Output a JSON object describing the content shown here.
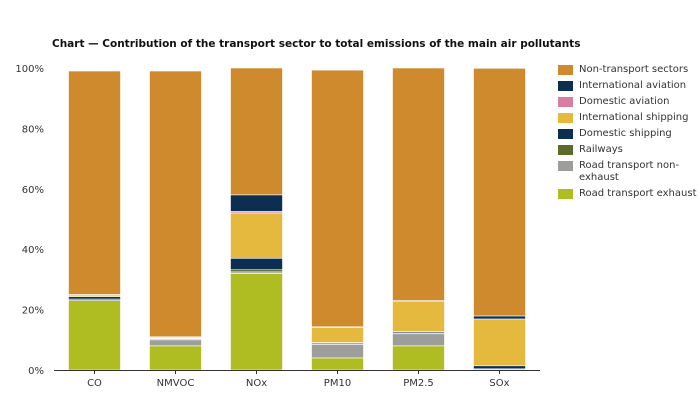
{
  "chart_data": {
    "type": "bar",
    "stacked": true,
    "title": "Chart — Contribution of the transport sector to total emissions of the main air pollutants",
    "xlabel": "",
    "ylabel": "",
    "ylim": [
      0,
      100
    ],
    "ytick_values": [
      0,
      20,
      40,
      60,
      80,
      100
    ],
    "ytick_labels": [
      "0%",
      "20%",
      "40%",
      "60%",
      "80%",
      "100%"
    ],
    "grid": false,
    "legend_position": "right",
    "categories": [
      "CO",
      "NMVOC",
      "NOx",
      "PM10",
      "PM2.5",
      "SOx"
    ],
    "series": [
      {
        "name": "Road transport exhaust",
        "color": "#afbc22",
        "values": [
          23,
          8,
          32,
          4,
          8,
          0.3
        ]
      },
      {
        "name": "Road transport non-exhaust",
        "color": "#9d9d9c",
        "values": [
          0,
          2,
          0.5,
          4.5,
          4,
          0
        ]
      },
      {
        "name": "Railways",
        "color": "#5b6b2a",
        "values": [
          0.5,
          0.3,
          0.7,
          0.4,
          0.3,
          0.1
        ]
      },
      {
        "name": "Domestic shipping",
        "color": "#0b2e51",
        "values": [
          0.8,
          0.2,
          3.8,
          0.2,
          0.4,
          1
        ]
      },
      {
        "name": "International shipping",
        "color": "#e5b93e",
        "values": [
          0.5,
          0.3,
          15,
          5,
          10,
          15.5
        ]
      },
      {
        "name": "Domestic aviation",
        "color": "#d77fa1",
        "values": [
          0,
          0,
          0.5,
          0,
          0,
          0
        ]
      },
      {
        "name": "International aviation",
        "color": "#0b2e51",
        "values": [
          0.2,
          0.2,
          5.5,
          0.2,
          0.3,
          1
        ]
      },
      {
        "name": "Non-transport sectors",
        "color": "#d08a2e",
        "values": [
          74,
          88,
          42,
          85,
          77,
          82
        ]
      }
    ],
    "legend_order": [
      "Non-transport sectors",
      "International aviation",
      "Domestic aviation",
      "International shipping",
      "Domestic shipping",
      "Railways",
      "Road transport non-exhaust",
      "Road transport exhaust"
    ]
  }
}
